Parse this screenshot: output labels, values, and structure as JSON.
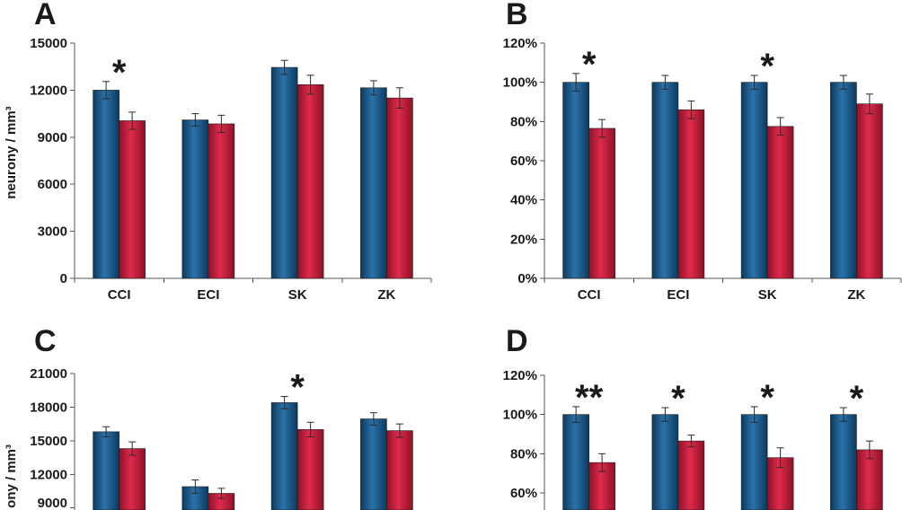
{
  "colors": {
    "series": [
      {
        "edge": "#0c3a5e",
        "center": "#2b72aa"
      },
      {
        "edge": "#8c1226",
        "center": "#e02a4c"
      }
    ]
  },
  "chart_data": [
    {
      "panel": "A",
      "type": "bar",
      "ylabel": "neurony / mm³",
      "categories": [
        "CCI",
        "ECI",
        "SK",
        "ZK"
      ],
      "ylim": [
        0,
        15000
      ],
      "yticks": [
        {
          "value": 0,
          "label": "0"
        },
        {
          "value": 3000,
          "label": "3000"
        },
        {
          "value": 6000,
          "label": "6000"
        },
        {
          "value": 9000,
          "label": "9000"
        },
        {
          "value": 12000,
          "label": "12000"
        },
        {
          "value": 15000,
          "label": "15000"
        }
      ],
      "series": [
        {
          "values": [
            12000,
            10100,
            13450,
            12150
          ],
          "errors": [
            550,
            400,
            450,
            450
          ]
        },
        {
          "values": [
            10050,
            9850,
            12350,
            11500
          ],
          "errors": [
            550,
            550,
            600,
            650
          ]
        }
      ],
      "annotations": [
        {
          "group": 0,
          "text": "*"
        }
      ]
    },
    {
      "panel": "B",
      "type": "bar",
      "categories": [
        "CCI",
        "ECI",
        "SK",
        "ZK"
      ],
      "ylim": [
        0,
        120
      ],
      "yticks": [
        {
          "value": 0,
          "label": "0%"
        },
        {
          "value": 20,
          "label": "20%"
        },
        {
          "value": 40,
          "label": "40%"
        },
        {
          "value": 60,
          "label": "60%"
        },
        {
          "value": 80,
          "label": "80%"
        },
        {
          "value": 100,
          "label": "100%"
        },
        {
          "value": 120,
          "label": "120%"
        }
      ],
      "series": [
        {
          "values": [
            100,
            100,
            100,
            100
          ],
          "errors": [
            4.5,
            3.5,
            3.5,
            3.5
          ]
        },
        {
          "values": [
            76.5,
            86,
            77.5,
            89
          ],
          "errors": [
            4.5,
            4.5,
            4.5,
            5
          ]
        }
      ],
      "annotations": [
        {
          "group": 0,
          "text": "*"
        },
        {
          "group": 2,
          "text": "*"
        }
      ]
    },
    {
      "panel": "C",
      "type": "bar",
      "ylabel": "ony / mm³",
      "ylim": [
        0,
        21000
      ],
      "yticks": [
        {
          "value": 9000,
          "label": "9000"
        },
        {
          "value": 12000,
          "label": "12000"
        },
        {
          "value": 15000,
          "label": "15000"
        },
        {
          "value": 18000,
          "label": "18000"
        },
        {
          "value": 21000,
          "label": "21000"
        }
      ],
      "series": [
        {
          "values": [
            15800,
            10900,
            18400,
            16950
          ],
          "errors": [
            450,
            600,
            550,
            550
          ]
        },
        {
          "values": [
            14300,
            10300,
            16000,
            15900
          ],
          "errors": [
            600,
            450,
            650,
            600
          ]
        }
      ],
      "annotations": [
        {
          "group": 2,
          "text": "*"
        }
      ]
    },
    {
      "panel": "D",
      "type": "bar",
      "ylim": [
        0,
        120
      ],
      "yticks": [
        {
          "value": 60,
          "label": "60%"
        },
        {
          "value": 80,
          "label": "80%"
        },
        {
          "value": 100,
          "label": "100%"
        },
        {
          "value": 120,
          "label": "120%"
        }
      ],
      "series": [
        {
          "values": [
            100,
            100,
            100,
            100
          ],
          "errors": [
            4,
            3.5,
            4,
            3.5
          ]
        },
        {
          "values": [
            75.5,
            86.5,
            78,
            82
          ],
          "errors": [
            4.5,
            3,
            5,
            4.5
          ]
        }
      ],
      "annotations": [
        {
          "group": 0,
          "text": "**"
        },
        {
          "group": 1,
          "text": "*"
        },
        {
          "group": 2,
          "text": "*"
        },
        {
          "group": 3,
          "text": "*"
        }
      ]
    }
  ]
}
